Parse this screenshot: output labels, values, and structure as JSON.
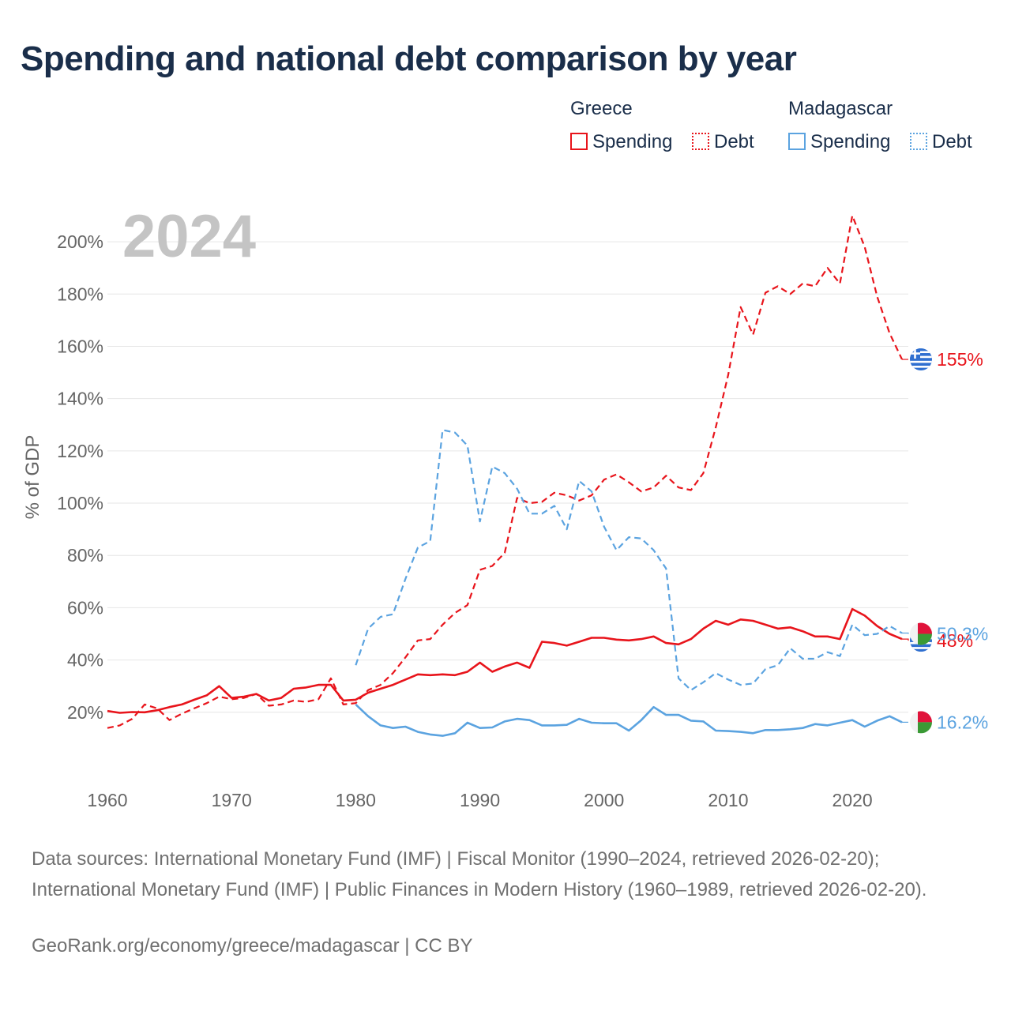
{
  "title": "Spending and national debt comparison by year",
  "legend": {
    "groups": [
      {
        "name": "Greece",
        "color": "#e8141b",
        "items": [
          {
            "label": "Spending",
            "style": "solid"
          },
          {
            "label": "Debt",
            "style": "dotted"
          }
        ]
      },
      {
        "name": "Madagascar",
        "color": "#5ba3e0",
        "items": [
          {
            "label": "Spending",
            "style": "solid"
          },
          {
            "label": "Debt",
            "style": "dotted"
          }
        ]
      }
    ]
  },
  "year_label": "2024",
  "footer": {
    "sources": "Data sources: International Monetary Fund (IMF) | Fiscal Monitor (1990–2024, retrieved 2026-02-20); International Monetary Fund (IMF) | Public Finances in Modern History (1960–1989, retrieved 2026-02-20).",
    "credit": "GeoRank.org/economy/greece/madagascar | CC BY"
  },
  "chart_data": {
    "type": "line",
    "title": "Spending and national debt comparison by year",
    "xlabel": "",
    "ylabel": "% of GDP",
    "xlim": [
      1960,
      2024
    ],
    "ylim": [
      0,
      210
    ],
    "x_ticks": [
      1960,
      1970,
      1980,
      1990,
      2000,
      2010,
      2020
    ],
    "y_ticks": [
      20,
      40,
      60,
      80,
      100,
      120,
      140,
      160,
      180,
      200
    ],
    "y_tick_labels": [
      "20%",
      "40%",
      "60%",
      "80%",
      "100%",
      "120%",
      "140%",
      "160%",
      "180%",
      "200%"
    ],
    "grid": true,
    "series": [
      {
        "name": "Greece Spending",
        "country": "Greece",
        "color": "#e8141b",
        "dash": false,
        "start_year": 1960,
        "values": [
          20.5,
          19.8,
          20.1,
          20.0,
          20.8,
          22.0,
          23.0,
          24.8,
          26.5,
          30.0,
          25.5,
          26.0,
          27.0,
          24.5,
          25.5,
          29.0,
          29.5,
          30.5,
          30.5,
          24.5,
          24.8,
          27.5,
          29.0,
          30.5,
          32.5,
          34.5,
          34.2,
          34.5,
          34.2,
          35.5,
          39.0,
          35.5,
          37.5,
          39.0,
          37.0,
          47.0,
          46.5,
          45.5,
          47.0,
          48.5,
          48.5,
          47.8,
          47.5,
          48.0,
          49.0,
          46.5,
          46.0,
          48.0,
          52.0,
          55.0,
          53.5,
          55.5,
          55.0,
          53.5,
          52.0,
          52.5,
          51.0,
          49.0,
          49.0,
          48.0,
          59.5,
          57.0,
          53.0,
          50.0,
          48.0
        ],
        "end_label": "48%",
        "flag": "greece"
      },
      {
        "name": "Greece Debt",
        "country": "Greece",
        "color": "#e8141b",
        "dash": true,
        "start_year": 1960,
        "values": [
          14.0,
          15.0,
          17.5,
          23.0,
          21.5,
          17.0,
          19.5,
          21.5,
          23.5,
          26.0,
          25.0,
          25.5,
          27.0,
          22.5,
          23.0,
          24.5,
          24.0,
          25.0,
          33.0,
          23.0,
          23.5,
          28.5,
          30.5,
          35.0,
          41.0,
          47.5,
          48.0,
          53.5,
          58.0,
          61.0,
          74.5,
          76.0,
          81.0,
          102.0,
          100.0,
          100.5,
          104.0,
          103.0,
          101.0,
          103.0,
          109.0,
          111.0,
          108.0,
          104.5,
          106.0,
          110.5,
          106.0,
          105.0,
          111.5,
          129.0,
          149.0,
          175.0,
          164.5,
          180.5,
          183.0,
          180.0,
          184.0,
          183.0,
          190.0,
          184.0,
          210.0,
          198.0,
          179.0,
          165.0,
          155.0
        ],
        "end_label": "155%",
        "flag": "greece"
      },
      {
        "name": "Madagascar Spending",
        "country": "Madagascar",
        "color": "#5ba3e0",
        "dash": false,
        "start_year": 1980,
        "values": [
          23.0,
          18.5,
          15.0,
          14.0,
          14.5,
          12.5,
          11.5,
          11.0,
          12.0,
          16.0,
          14.0,
          14.2,
          16.5,
          17.5,
          17.0,
          15.0,
          15.0,
          15.2,
          17.5,
          16.0,
          15.8,
          15.8,
          13.0,
          17.0,
          22.0,
          19.0,
          19.0,
          16.8,
          16.5,
          13.0,
          12.8,
          12.5,
          12.0,
          13.2,
          13.2,
          13.5,
          14.0,
          15.5,
          15.0,
          16.0,
          17.0,
          14.5,
          16.8,
          18.5,
          16.2
        ],
        "end_label": "16.2%",
        "flag": "madagascar"
      },
      {
        "name": "Madagascar Debt",
        "country": "Madagascar",
        "color": "#5ba3e0",
        "dash": true,
        "start_year": 1980,
        "values": [
          38.0,
          52.0,
          56.5,
          57.5,
          71.0,
          83.0,
          85.5,
          128.0,
          127.0,
          122.0,
          93.0,
          114.0,
          111.5,
          105.5,
          96.0,
          96.0,
          99.0,
          90.0,
          108.5,
          104.5,
          91.0,
          82.0,
          87.0,
          86.5,
          82.0,
          75.0,
          33.0,
          28.5,
          31.5,
          35.0,
          32.5,
          30.5,
          31.0,
          36.5,
          38.0,
          44.5,
          40.5,
          40.5,
          43.0,
          41.5,
          53.5,
          49.5,
          50.0,
          53.0,
          50.3
        ],
        "end_label": "50.3%",
        "flag": "madagascar"
      }
    ]
  }
}
